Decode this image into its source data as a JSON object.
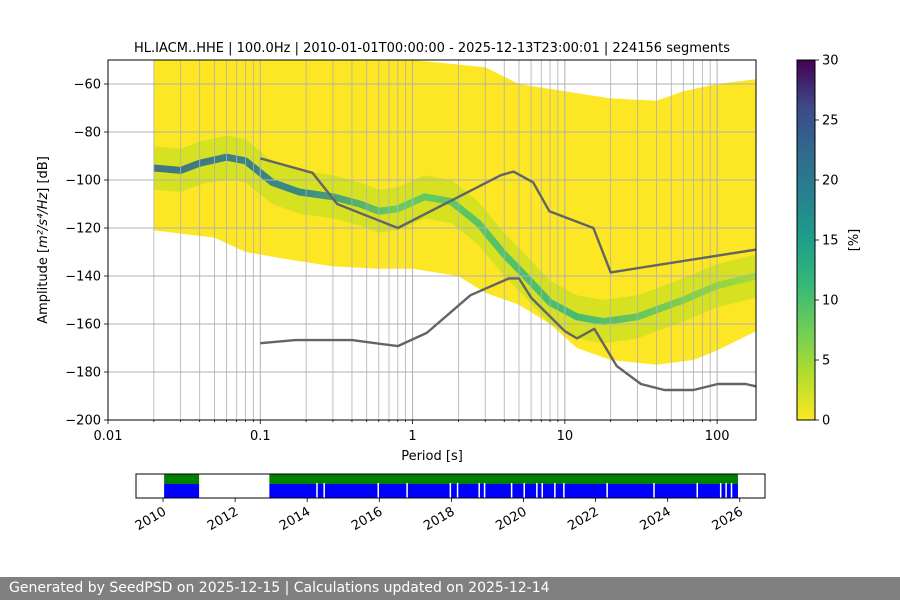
{
  "chart_data": {
    "type": "heatmap",
    "title": "HL.IACM..HHE | 100.0Hz | 2010-01-01T00:00:00 - 2025-12-13T23:00:01 | 224156 segments",
    "xlabel": "Period [s]",
    "ylabel_prefix": "Amplitude [",
    "ylabel_units": "m²/s⁴/Hz",
    "ylabel_suffix": "] [dB]",
    "x_scale": "log",
    "xlim": [
      0.01,
      180
    ],
    "ylim": [
      -200,
      -50
    ],
    "x_ticks": [
      {
        "value": 0.01,
        "label": "0.01"
      },
      {
        "value": 0.1,
        "label": "0.1"
      },
      {
        "value": 1,
        "label": "1"
      },
      {
        "value": 10,
        "label": "10"
      },
      {
        "value": 100,
        "label": "100"
      }
    ],
    "y_ticks": [
      {
        "value": -60,
        "label": "−60"
      },
      {
        "value": -80,
        "label": "−80"
      },
      {
        "value": -100,
        "label": "−100"
      },
      {
        "value": -120,
        "label": "−120"
      },
      {
        "value": -140,
        "label": "−140"
      },
      {
        "value": -160,
        "label": "−160"
      },
      {
        "value": -180,
        "label": "−180"
      },
      {
        "value": -200,
        "label": "−200"
      }
    ],
    "grid": true,
    "colorbar": {
      "label": "[%]",
      "range": [
        0,
        30
      ],
      "ticks": [
        {
          "value": 0,
          "label": "0"
        },
        {
          "value": 5,
          "label": "5"
        },
        {
          "value": 10,
          "label": "10"
        },
        {
          "value": 15,
          "label": "15"
        },
        {
          "value": 20,
          "label": "20"
        },
        {
          "value": 25,
          "label": "25"
        },
        {
          "value": 30,
          "label": "30"
        }
      ],
      "colormap": [
        "#fde725",
        "#5ec962",
        "#21918c",
        "#3b528b",
        "#440154"
      ]
    },
    "noise_models": [
      {
        "points": [
          [
            0.1,
            -91
          ],
          [
            0.22,
            -97
          ],
          [
            0.32,
            -110
          ],
          [
            0.8,
            -120
          ],
          [
            3.8,
            -98
          ],
          [
            4.6,
            -96.5
          ],
          [
            6.2,
            -101
          ],
          [
            7.9,
            -113
          ],
          [
            15.4,
            -120
          ],
          [
            20,
            -138.5
          ],
          [
            180,
            -129
          ]
        ]
      },
      {
        "points": [
          [
            0.1,
            -168
          ],
          [
            0.17,
            -166.7
          ],
          [
            0.4,
            -166.7
          ],
          [
            0.8,
            -169.2
          ],
          [
            1.24,
            -163.7
          ],
          [
            2.4,
            -148
          ],
          [
            4.3,
            -141
          ],
          [
            5,
            -141
          ],
          [
            6,
            -149
          ],
          [
            10,
            -163
          ],
          [
            12,
            -166
          ],
          [
            15.6,
            -162
          ],
          [
            21.9,
            -177.5
          ],
          [
            31.6,
            -185
          ],
          [
            45,
            -187.5
          ],
          [
            70,
            -187.5
          ],
          [
            101,
            -185
          ],
          [
            154,
            -185
          ],
          [
            180,
            -186
          ]
        ]
      }
    ],
    "mode_curve": [
      [
        0.02,
        -95
      ],
      [
        0.03,
        -96
      ],
      [
        0.04,
        -93
      ],
      [
        0.06,
        -90.5
      ],
      [
        0.08,
        -92
      ],
      [
        0.12,
        -101
      ],
      [
        0.18,
        -105
      ],
      [
        0.3,
        -107
      ],
      [
        0.45,
        -110
      ],
      [
        0.6,
        -113
      ],
      [
        0.8,
        -112
      ],
      [
        1.2,
        -107
      ],
      [
        1.8,
        -109
      ],
      [
        2.7,
        -118
      ],
      [
        4,
        -131
      ],
      [
        5.5,
        -140
      ],
      [
        8,
        -151
      ],
      [
        12,
        -157
      ],
      [
        18,
        -159
      ],
      [
        30,
        -157
      ],
      [
        60,
        -150
      ],
      [
        100,
        -144
      ],
      [
        180,
        -140
      ]
    ],
    "density_bounds": {
      "upper": [
        [
          0.02,
          -50
        ],
        [
          0.1,
          -50
        ],
        [
          1,
          -50
        ],
        [
          3,
          -53
        ],
        [
          5,
          -60
        ],
        [
          10,
          -63
        ],
        [
          20,
          -66
        ],
        [
          40,
          -67
        ],
        [
          60,
          -63
        ],
        [
          100,
          -60
        ],
        [
          180,
          -58
        ]
      ],
      "lower": [
        [
          0.02,
          -121
        ],
        [
          0.05,
          -124
        ],
        [
          0.08,
          -130
        ],
        [
          0.15,
          -133
        ],
        [
          0.3,
          -136
        ],
        [
          0.6,
          -137
        ],
        [
          1,
          -137
        ],
        [
          2,
          -140
        ],
        [
          3,
          -147
        ],
        [
          5,
          -152
        ],
        [
          8,
          -160
        ],
        [
          12,
          -170
        ],
        [
          20,
          -175
        ],
        [
          40,
          -177
        ],
        [
          70,
          -175
        ],
        [
          100,
          -171
        ],
        [
          180,
          -163
        ]
      ]
    },
    "timeline": {
      "x_ticks": [
        "2010",
        "2012",
        "2014",
        "2016",
        "2018",
        "2020",
        "2022",
        "2024",
        "2026"
      ],
      "xlim": [
        2009.25,
        2026.7
      ],
      "coverage_segments": [
        [
          2010.03,
          2011.0
        ],
        [
          2012.95,
          2025.95
        ]
      ],
      "gaps": [
        2014.25,
        2014.45,
        2015.95,
        2016.75,
        2017.95,
        2018.15,
        2018.75,
        2018.9,
        2019.65,
        2020.0,
        2020.35,
        2020.5,
        2020.85,
        2021.1,
        2022.3,
        2023.6,
        2024.8,
        2025.45,
        2025.6,
        2025.75
      ]
    }
  },
  "footer": {
    "text": "Generated by SeedPSD on 2025-12-15 | Calculations updated on 2025-12-14"
  }
}
